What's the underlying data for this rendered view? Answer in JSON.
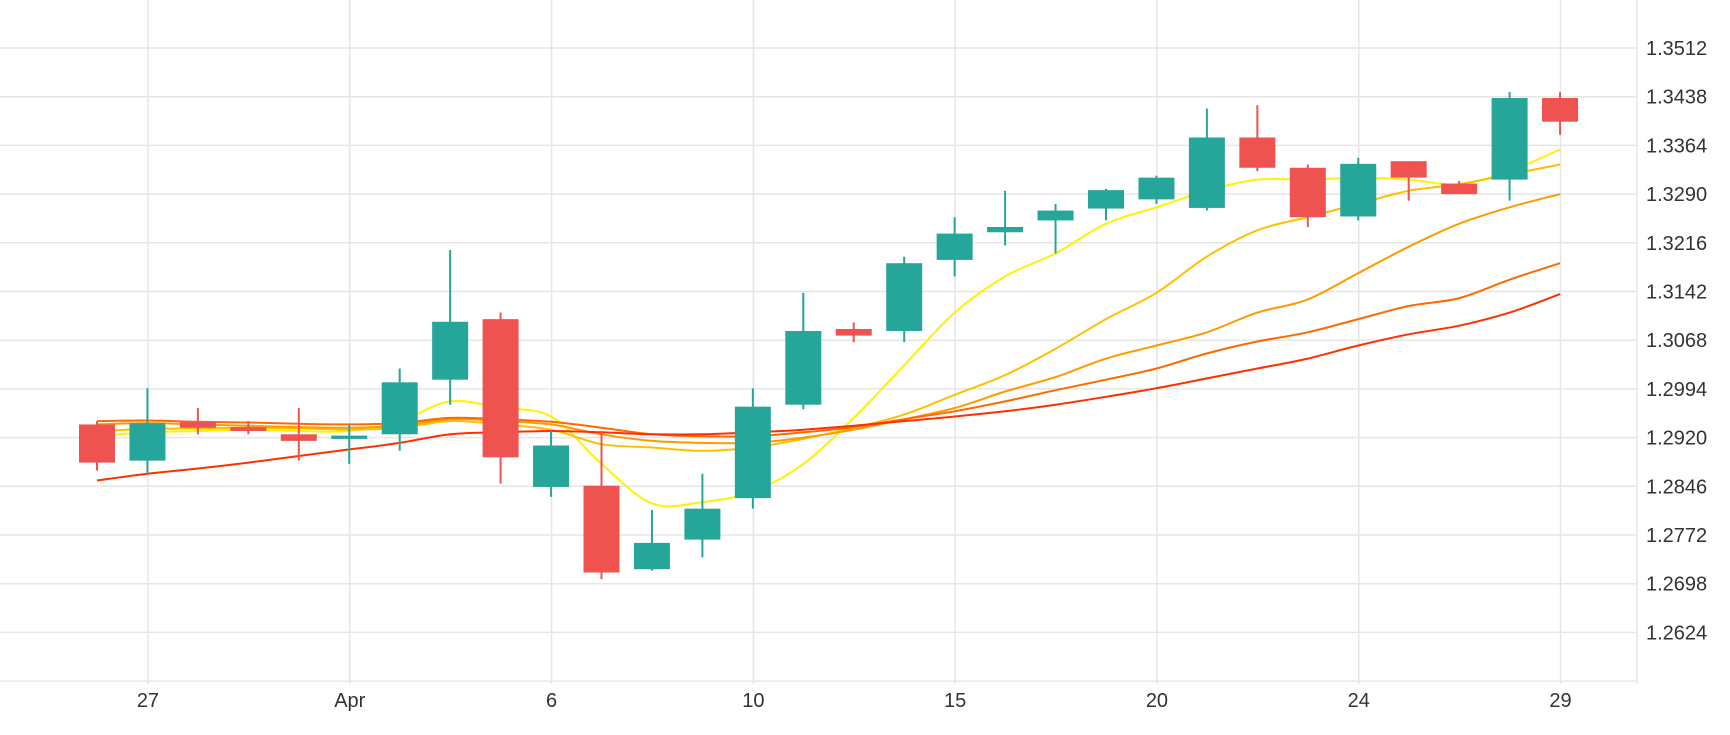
{
  "chart_data": {
    "type": "candlestick",
    "title": "",
    "xlabel": "",
    "ylabel": "",
    "ylim": [
      1.255,
      1.3586
    ],
    "y_ticks": [
      1.3512,
      1.3438,
      1.3364,
      1.329,
      1.3216,
      1.3142,
      1.3068,
      1.2994,
      1.292,
      1.2846,
      1.2772,
      1.2698,
      1.2624
    ],
    "y_tick_labels": [
      "1.3512",
      "1.3438",
      "1.3364",
      "1.3290",
      "1.3216",
      "1.3142",
      "1.3068",
      "1.2994",
      "1.2920",
      "1.2846",
      "1.2772",
      "1.2698",
      "1.2624"
    ],
    "x_ticks": [
      {
        "index": 1,
        "label": "27"
      },
      {
        "index": 5,
        "label": "Apr"
      },
      {
        "index": 9,
        "label": "6"
      },
      {
        "index": 13,
        "label": "10"
      },
      {
        "index": 17,
        "label": "15"
      },
      {
        "index": 21,
        "label": "20"
      },
      {
        "index": 25,
        "label": "24"
      },
      {
        "index": 29,
        "label": "29"
      }
    ],
    "grid": true,
    "up_color": "#26a69a",
    "down_color": "#ef5350",
    "candles": [
      [
        1.294,
        1.2945,
        1.287,
        1.2882
      ],
      [
        1.2885,
        1.2995,
        1.2865,
        1.2942
      ],
      [
        1.2944,
        1.2965,
        1.2925,
        1.2935
      ],
      [
        1.2936,
        1.2945,
        1.2925,
        1.293
      ],
      [
        1.2925,
        1.2965,
        1.2885,
        1.2915
      ],
      [
        1.2918,
        1.294,
        1.288,
        1.2923
      ],
      [
        1.2925,
        1.3025,
        1.29,
        1.3004
      ],
      [
        1.3008,
        1.3205,
        1.297,
        1.3096
      ],
      [
        1.31,
        1.311,
        1.285,
        1.289
      ],
      [
        1.2845,
        1.293,
        1.283,
        1.2908
      ],
      [
        1.2847,
        1.293,
        1.2705,
        1.2715
      ],
      [
        1.272,
        1.281,
        1.2718,
        1.276
      ],
      [
        1.2765,
        1.2865,
        1.2738,
        1.2812
      ],
      [
        1.2828,
        1.2995,
        1.2812,
        1.2967
      ],
      [
        1.297,
        1.314,
        1.2963,
        1.3082
      ],
      [
        1.3085,
        1.3095,
        1.3065,
        1.3075
      ],
      [
        1.3082,
        1.3195,
        1.3065,
        1.3185
      ],
      [
        1.319,
        1.3255,
        1.3165,
        1.323
      ],
      [
        1.3232,
        1.3295,
        1.3212,
        1.324
      ],
      [
        1.325,
        1.3275,
        1.32,
        1.3265
      ],
      [
        1.3268,
        1.3298,
        1.325,
        1.3296
      ],
      [
        1.3282,
        1.3318,
        1.3275,
        1.3315
      ],
      [
        1.3269,
        1.342,
        1.3265,
        1.3376
      ],
      [
        1.3376,
        1.3425,
        1.3325,
        1.333
      ],
      [
        1.333,
        1.3335,
        1.324,
        1.3255
      ],
      [
        1.3256,
        1.3345,
        1.325,
        1.3336
      ],
      [
        1.334,
        1.334,
        1.328,
        1.3315
      ],
      [
        1.3306,
        1.331,
        1.329,
        1.329
      ],
      [
        1.3312,
        1.3445,
        1.328,
        1.3436
      ],
      [
        1.3436,
        1.3445,
        1.338,
        1.34
      ]
    ],
    "moving_averages": [
      {
        "color": "#fff200",
        "values": [
          1.2922,
          1.2928,
          1.293,
          1.2932,
          1.293,
          1.293,
          1.2945,
          1.2975,
          1.2965,
          1.2952,
          1.288,
          1.282,
          1.2822,
          1.2838,
          1.288,
          1.295,
          1.303,
          1.311,
          1.3165,
          1.32,
          1.3245,
          1.327,
          1.3295,
          1.3312,
          1.3312,
          1.3315,
          1.3312,
          1.3305,
          1.3325,
          1.3358
        ]
      },
      {
        "color": "#ffc000",
        "values": [
          1.293,
          1.2933,
          1.2934,
          1.2935,
          1.2934,
          1.2932,
          1.2935,
          1.2945,
          1.294,
          1.2932,
          1.291,
          1.2905,
          1.29,
          1.2905,
          1.2918,
          1.2935,
          1.2955,
          1.2985,
          1.3015,
          1.3055,
          1.31,
          1.314,
          1.3195,
          1.3235,
          1.3255,
          1.3275,
          1.3295,
          1.3305,
          1.332,
          1.3335
        ]
      },
      {
        "color": "#ff9a00",
        "values": [
          1.294,
          1.2942,
          1.294,
          1.2938,
          1.2936,
          1.2935,
          1.2938,
          1.2948,
          1.2945,
          1.294,
          1.2925,
          1.2915,
          1.2912,
          1.2912,
          1.292,
          1.2932,
          1.2948,
          1.2965,
          1.299,
          1.3012,
          1.304,
          1.306,
          1.308,
          1.311,
          1.313,
          1.317,
          1.321,
          1.3245,
          1.327,
          1.329
        ]
      },
      {
        "color": "#ff6a00",
        "values": [
          1.2945,
          1.2946,
          1.2944,
          1.2943,
          1.2941,
          1.294,
          1.2942,
          1.295,
          1.2948,
          1.2944,
          1.2935,
          1.2925,
          1.2922,
          1.2922,
          1.2928,
          1.2936,
          1.2948,
          1.296,
          1.2975,
          1.2992,
          1.3008,
          1.3025,
          1.3048,
          1.3066,
          1.308,
          1.31,
          1.312,
          1.3132,
          1.316,
          1.3185
        ]
      },
      {
        "color": "#ff3000",
        "values": [
          1.2855,
          1.2865,
          1.2873,
          1.2882,
          1.2892,
          1.2902,
          1.2912,
          1.2925,
          1.2928,
          1.293,
          1.2928,
          1.2925,
          1.2925,
          1.2928,
          1.2932,
          1.2938,
          1.2945,
          1.2952,
          1.296,
          1.297,
          1.2982,
          1.2995,
          1.301,
          1.3025,
          1.304,
          1.306,
          1.3077,
          1.309,
          1.311,
          1.3138
        ]
      }
    ]
  }
}
